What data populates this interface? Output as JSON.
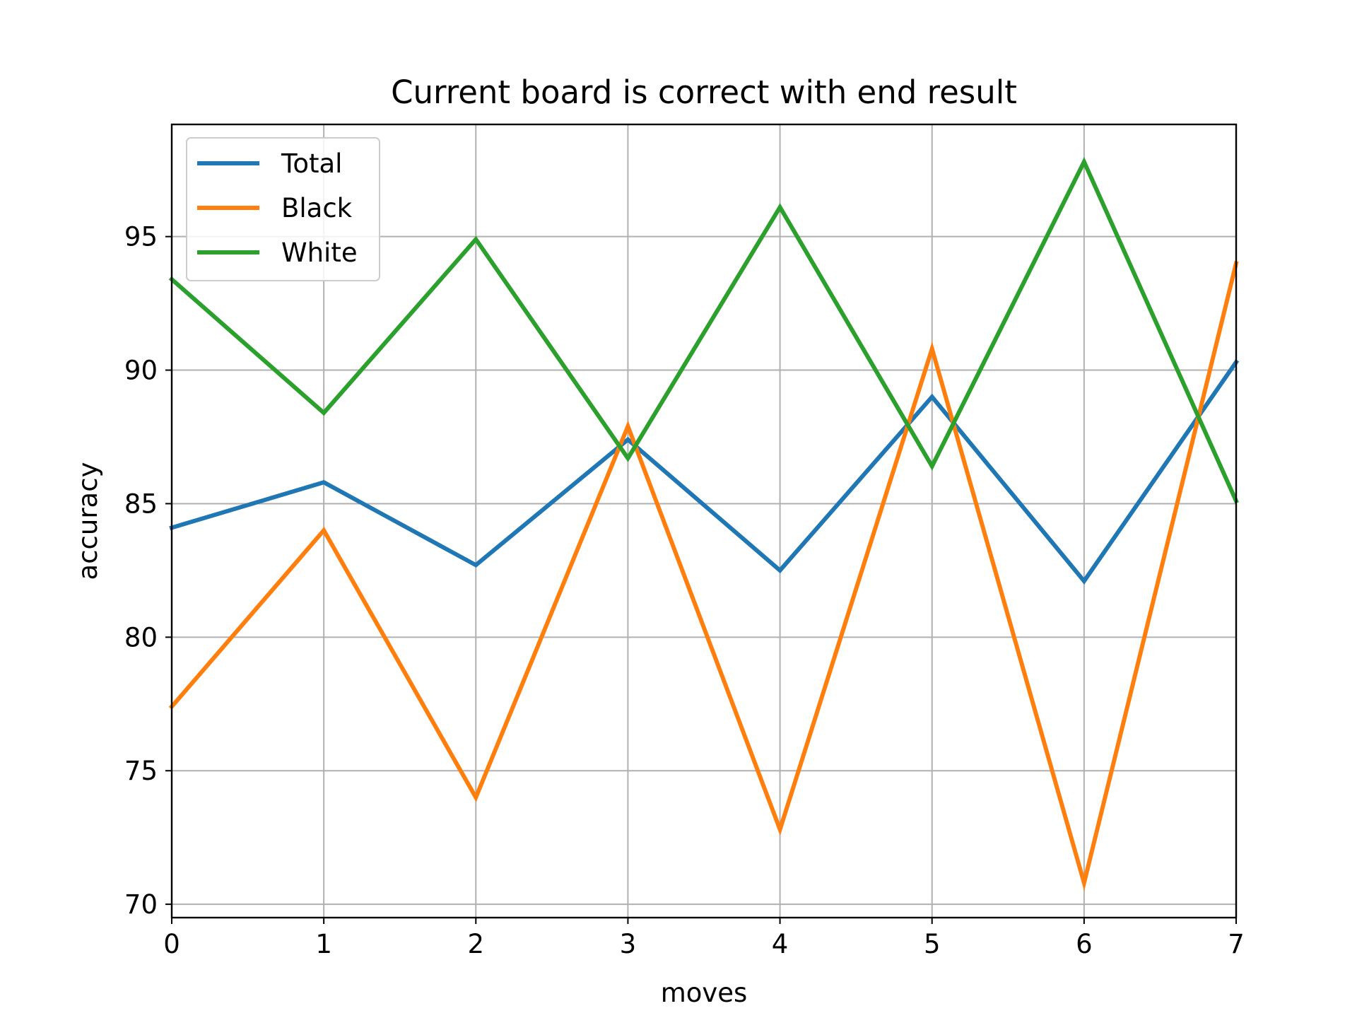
{
  "chart_data": {
    "type": "line",
    "title": "Current board is correct with end result",
    "xlabel": "moves",
    "ylabel": "accuracy",
    "x": [
      0,
      1,
      2,
      3,
      4,
      5,
      6,
      7
    ],
    "xlim": [
      0,
      7
    ],
    "ylim": [
      69.5,
      99.2
    ],
    "xticks": [
      "0",
      "1",
      "2",
      "3",
      "4",
      "5",
      "6",
      "7"
    ],
    "yticks": [
      "70",
      "75",
      "80",
      "85",
      "90",
      "95"
    ],
    "grid": true,
    "legend_position": "top-left",
    "series": [
      {
        "name": "Total",
        "color": "#1f77b4",
        "values": [
          84.1,
          85.8,
          82.7,
          87.4,
          82.5,
          89.0,
          82.1,
          90.3
        ]
      },
      {
        "name": "Black",
        "color": "#ff7f0e",
        "values": [
          77.4,
          84.0,
          74.0,
          87.9,
          72.8,
          90.8,
          70.8,
          94.0
        ]
      },
      {
        "name": "White",
        "color": "#2ca02c",
        "values": [
          93.4,
          88.4,
          94.9,
          86.7,
          96.1,
          86.4,
          97.8,
          85.1
        ]
      }
    ]
  }
}
